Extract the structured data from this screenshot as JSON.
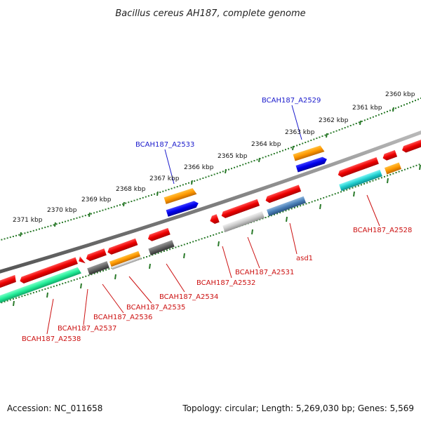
{
  "title": "Bacillus cereus AH187, complete genome",
  "footer": {
    "accession": "Accession: NC_011658",
    "summary": "Topology: circular; Length: 5,269,030 bp; Genes: 5,569"
  },
  "colors": {
    "backbone": "#808080",
    "dots": "#2a7a2a",
    "label_forward": "#1a1acc",
    "label_reverse": "#cc1111",
    "leader": "#cc1111",
    "leader_forward": "#1a1acc"
  },
  "ticks": [
    "2371 kbp",
    "2370 kbp",
    "2369 kbp",
    "2368 kbp",
    "2367 kbp",
    "2366 kbp",
    "2365 kbp",
    "2364 kbp",
    "2363 kbp",
    "2362 kbp",
    "2361 kbp",
    "2360 kbp"
  ],
  "gene_labels": [
    {
      "text": "BCAH187_A2529",
      "strand": "forward"
    },
    {
      "text": "BCAH187_A2533",
      "strand": "forward"
    },
    {
      "text": "BCAH187_A2528",
      "strand": "reverse"
    },
    {
      "text": "asd1",
      "strand": "reverse"
    },
    {
      "text": "BCAH187_A2531",
      "strand": "reverse"
    },
    {
      "text": "BCAH187_A2532",
      "strand": "reverse"
    },
    {
      "text": "BCAH187_A2534",
      "strand": "reverse"
    },
    {
      "text": "BCAH187_A2535",
      "strand": "reverse"
    },
    {
      "text": "BCAH187_A2536",
      "strand": "reverse"
    },
    {
      "text": "BCAH187_A2537",
      "strand": "reverse"
    },
    {
      "text": "BCAH187_A2538",
      "strand": "reverse"
    }
  ]
}
